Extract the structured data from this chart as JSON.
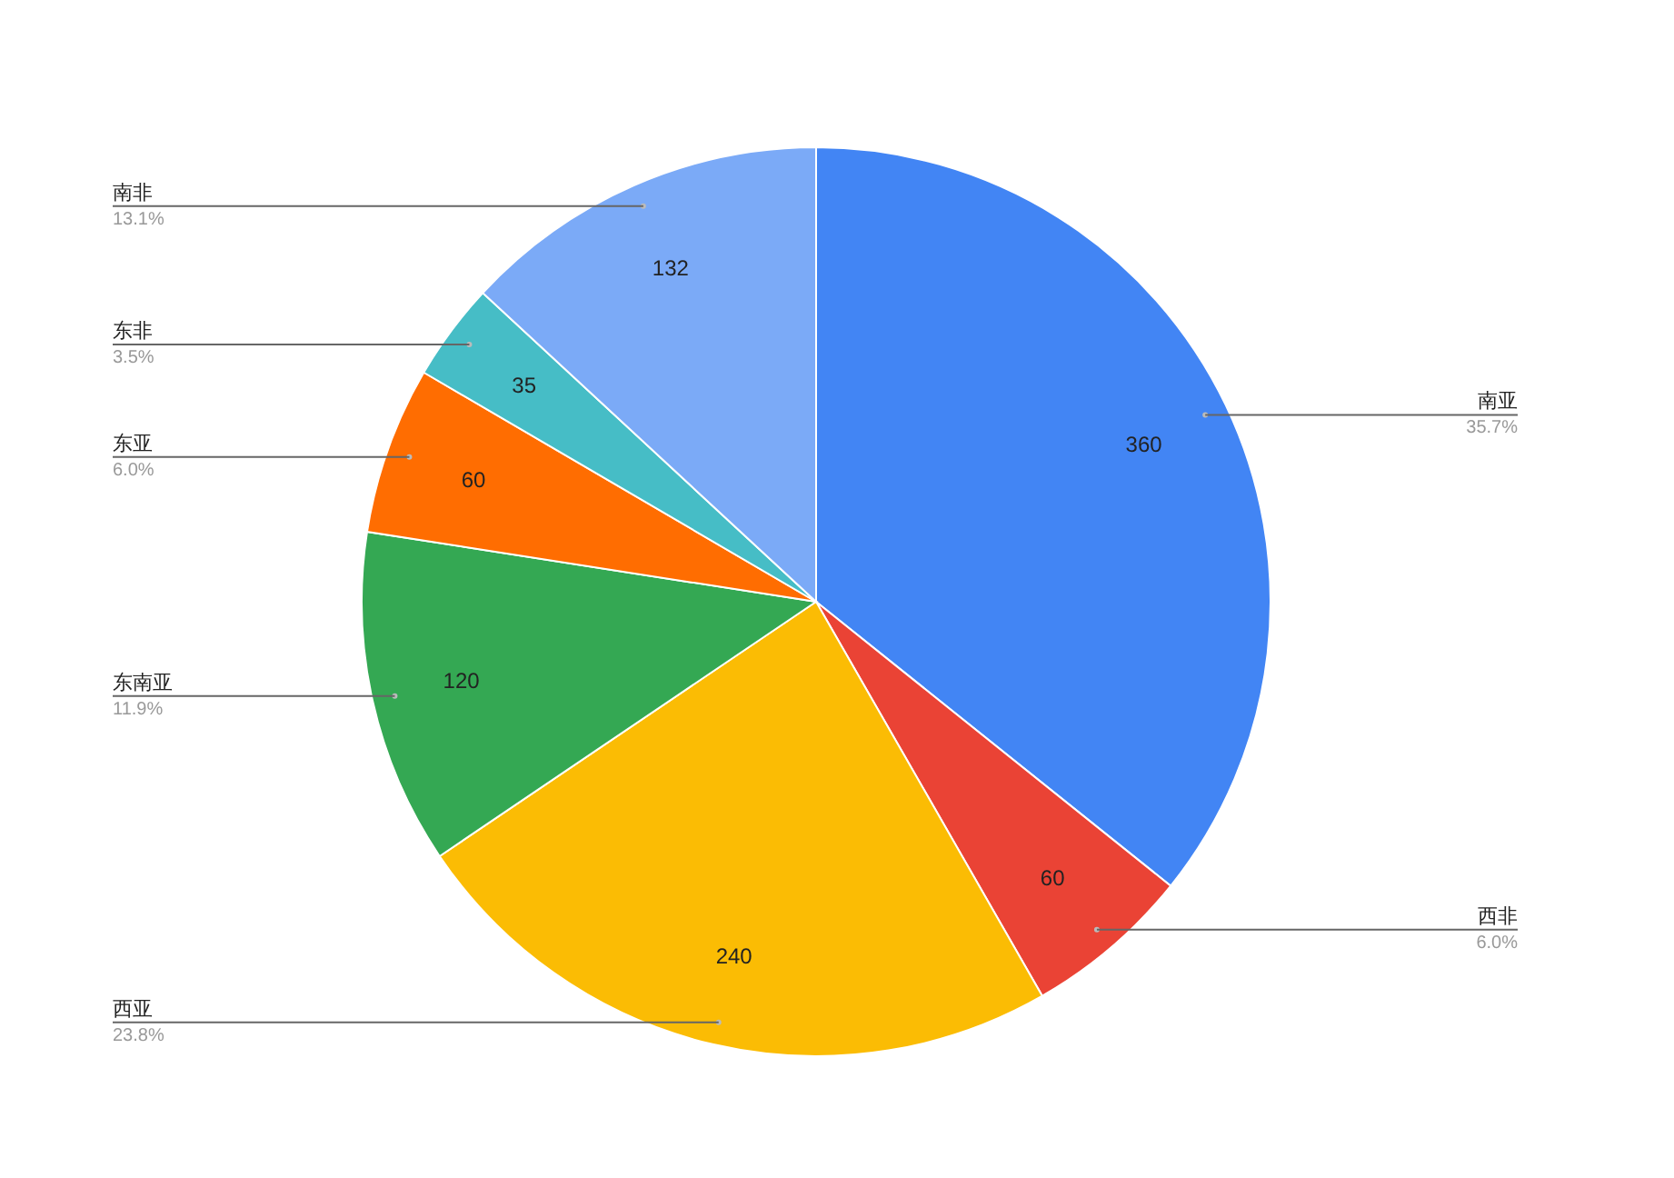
{
  "chart_data": {
    "type": "pie",
    "categories": [
      "南亚",
      "西非",
      "西亚",
      "东南亚",
      "东亚",
      "东非",
      "南非"
    ],
    "values": [
      360,
      60,
      240,
      120,
      60,
      35,
      132
    ],
    "colors": [
      "#4285f4",
      "#ea4335",
      "#fbbc04",
      "#34a853",
      "#ff6d01",
      "#46bdc6",
      "#7baaf7"
    ],
    "data_labels": true,
    "annotations": [
      "35.7%",
      "6.0%",
      "23.8%",
      "11.9%",
      "6.0%",
      "3.5%",
      "13.1%"
    ]
  }
}
